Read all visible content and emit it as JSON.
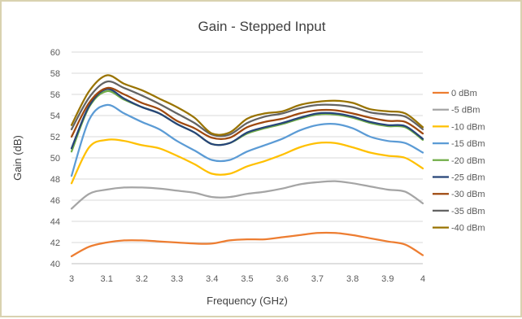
{
  "chart_data": {
    "type": "line",
    "title": "Gain - Stepped Input",
    "xlabel": "Frequency (GHz)",
    "ylabel": "Gain (dB)",
    "xlim": [
      3,
      4
    ],
    "ylim": [
      40,
      60
    ],
    "x_ticks": [
      "3",
      "3.1",
      "3.2",
      "3.3",
      "3.4",
      "3.5",
      "3.6",
      "3.7",
      "3.8",
      "3.9",
      "4"
    ],
    "y_ticks": [
      "40",
      "42",
      "44",
      "46",
      "48",
      "50",
      "52",
      "54",
      "56",
      "58",
      "60"
    ],
    "grid": "horizontal",
    "legend_position": "right",
    "x": [
      3.0,
      3.05,
      3.1,
      3.15,
      3.2,
      3.25,
      3.3,
      3.35,
      3.4,
      3.45,
      3.5,
      3.55,
      3.6,
      3.65,
      3.7,
      3.75,
      3.8,
      3.85,
      3.9,
      3.95,
      4.0
    ],
    "series": [
      {
        "name": "0 dBm",
        "color": "#ed7d31",
        "values": [
          40.7,
          41.6,
          42.0,
          42.2,
          42.2,
          42.1,
          42.0,
          41.9,
          41.9,
          42.2,
          42.3,
          42.3,
          42.5,
          42.7,
          42.9,
          42.9,
          42.7,
          42.4,
          42.1,
          41.8,
          40.8
        ]
      },
      {
        "name": "-5 dBm",
        "color": "#a5a5a5",
        "values": [
          45.2,
          46.6,
          47.0,
          47.2,
          47.2,
          47.1,
          46.9,
          46.7,
          46.3,
          46.3,
          46.6,
          46.8,
          47.1,
          47.5,
          47.7,
          47.8,
          47.6,
          47.3,
          47.0,
          46.8,
          45.7
        ]
      },
      {
        "name": "-10 dBm",
        "color": "#ffc000",
        "values": [
          47.6,
          51.0,
          51.7,
          51.6,
          51.2,
          50.9,
          50.2,
          49.4,
          48.5,
          48.5,
          49.2,
          49.7,
          50.3,
          51.0,
          51.4,
          51.4,
          51.0,
          50.5,
          50.2,
          50.0,
          49.0
        ]
      },
      {
        "name": "-15 dBm",
        "color": "#5b9bd5",
        "values": [
          48.3,
          53.6,
          55.0,
          54.2,
          53.4,
          52.7,
          51.6,
          50.7,
          49.8,
          49.8,
          50.6,
          51.2,
          51.8,
          52.6,
          53.1,
          53.2,
          52.8,
          52.0,
          51.6,
          51.4,
          50.5
        ]
      },
      {
        "name": "-20 dBm",
        "color": "#70ad47",
        "values": [
          50.6,
          54.8,
          56.3,
          55.5,
          54.8,
          54.2,
          53.2,
          52.4,
          51.3,
          51.4,
          52.3,
          52.8,
          53.2,
          53.7,
          54.1,
          54.1,
          53.8,
          53.3,
          53.0,
          52.9,
          51.7
        ]
      },
      {
        "name": "-25 dBm",
        "color": "#264478",
        "values": [
          50.9,
          54.9,
          56.5,
          55.6,
          54.8,
          54.2,
          53.2,
          52.4,
          51.3,
          51.4,
          52.4,
          52.9,
          53.3,
          53.8,
          54.2,
          54.2,
          53.9,
          53.4,
          53.1,
          53.0,
          51.8
        ]
      },
      {
        "name": "-30 dBm",
        "color": "#9e480e",
        "values": [
          52.0,
          55.2,
          56.6,
          56.0,
          55.2,
          54.6,
          53.5,
          52.8,
          51.9,
          51.9,
          52.9,
          53.4,
          53.7,
          54.2,
          54.5,
          54.5,
          54.2,
          53.8,
          53.5,
          53.4,
          52.3
        ]
      },
      {
        "name": "-35 dBm",
        "color": "#636363",
        "values": [
          52.7,
          55.7,
          57.2,
          56.6,
          55.9,
          55.1,
          54.2,
          53.3,
          52.2,
          52.2,
          53.3,
          53.9,
          54.2,
          54.7,
          55.0,
          55.0,
          54.8,
          54.3,
          54.1,
          53.9,
          52.7
        ]
      },
      {
        "name": "-40 dBm",
        "color": "#997300",
        "values": [
          53.1,
          56.3,
          57.8,
          57.0,
          56.4,
          55.6,
          54.8,
          53.8,
          52.3,
          52.4,
          53.7,
          54.2,
          54.4,
          55.0,
          55.3,
          55.4,
          55.2,
          54.6,
          54.4,
          54.2,
          52.9
        ]
      }
    ]
  }
}
